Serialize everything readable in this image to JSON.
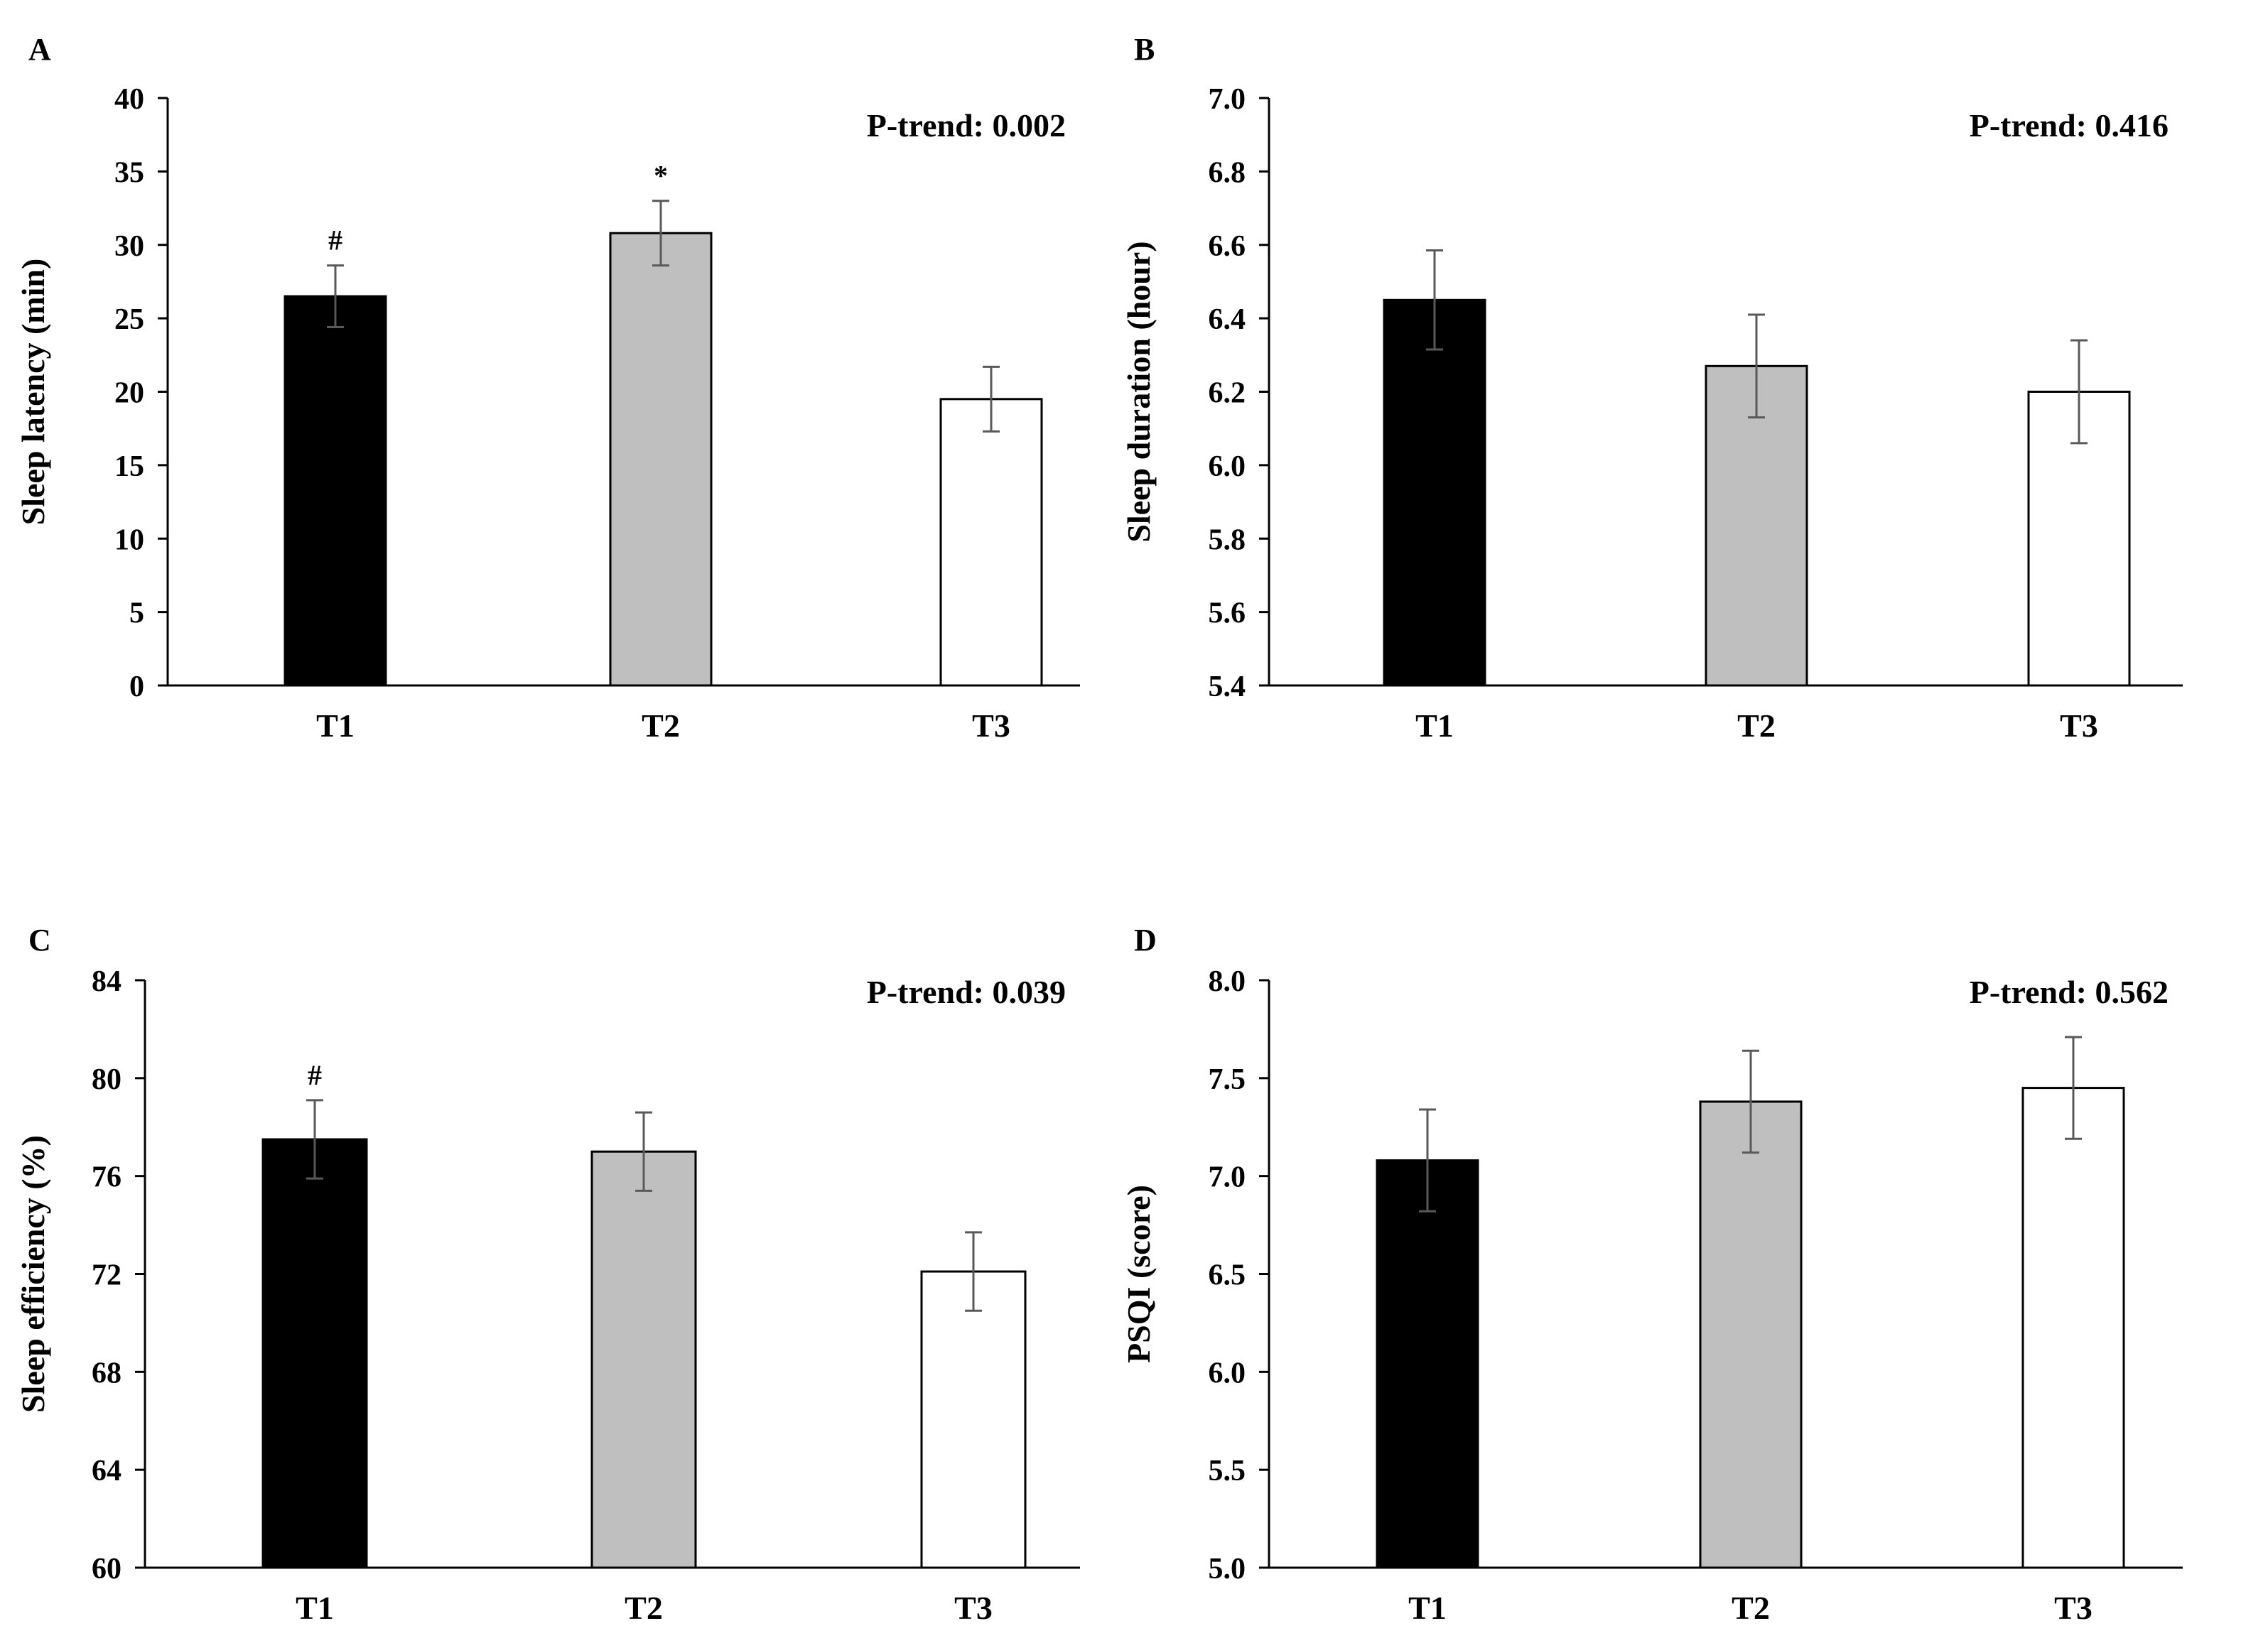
{
  "figure": {
    "colors": {
      "axis": "#000000",
      "error_bar": "#595959",
      "bar_edge": "#000000"
    },
    "panels": [
      {
        "label": "A",
        "annotation": "P-trend: 0.002"
      },
      {
        "label": "B",
        "annotation": "P-trend: 0.416"
      },
      {
        "label": "C",
        "annotation": "P-trend: 0.039"
      },
      {
        "label": "D",
        "annotation": "P-trend: 0.562"
      }
    ]
  },
  "chart_data": [
    {
      "panel": "A",
      "type": "bar",
      "categories": [
        "T1",
        "T2",
        "T3"
      ],
      "values": [
        26.5,
        30.8,
        19.5
      ],
      "errors": [
        2.1,
        2.2,
        2.2
      ],
      "bar_colors": [
        "#000000",
        "#bfbfbf",
        "#ffffff"
      ],
      "markers": [
        "#",
        "*",
        ""
      ],
      "ylabel": "Sleep latency (min)",
      "ylim": [
        0,
        40
      ],
      "yticks": [
        "0",
        "5",
        "10",
        "15",
        "20",
        "25",
        "30",
        "35",
        "40"
      ],
      "annotation": "P-trend: 0.002"
    },
    {
      "panel": "B",
      "type": "bar",
      "categories": [
        "T1",
        "T2",
        "T3"
      ],
      "values": [
        6.45,
        6.27,
        6.2
      ],
      "errors": [
        0.135,
        0.14,
        0.14
      ],
      "bar_colors": [
        "#000000",
        "#bfbfbf",
        "#ffffff"
      ],
      "markers": [
        "",
        "",
        ""
      ],
      "ylabel": "Sleep duration (hour)",
      "ylim": [
        5.4,
        7.0
      ],
      "yticks": [
        "5.4",
        "5.6",
        "5.8",
        "6.0",
        "6.2",
        "6.4",
        "6.6",
        "6.8",
        "7.0"
      ],
      "annotation": "P-trend: 0.416"
    },
    {
      "panel": "C",
      "type": "bar",
      "categories": [
        "T1",
        "T2",
        "T3"
      ],
      "values": [
        77.5,
        77.0,
        72.1
      ],
      "errors": [
        1.6,
        1.6,
        1.6
      ],
      "bar_colors": [
        "#000000",
        "#bfbfbf",
        "#ffffff"
      ],
      "markers": [
        "#",
        "",
        ""
      ],
      "ylabel": "Sleep efficiency (%)",
      "ylim": [
        60,
        84
      ],
      "yticks": [
        "60",
        "64",
        "68",
        "72",
        "76",
        "80",
        "84"
      ],
      "annotation": "P-trend: 0.039"
    },
    {
      "panel": "D",
      "type": "bar",
      "categories": [
        "T1",
        "T2",
        "T3"
      ],
      "values": [
        7.08,
        7.38,
        7.45
      ],
      "errors": [
        0.26,
        0.26,
        0.26
      ],
      "bar_colors": [
        "#000000",
        "#bfbfbf",
        "#ffffff"
      ],
      "markers": [
        "",
        "",
        ""
      ],
      "ylabel": "PSQI (score)",
      "ylim": [
        5.0,
        8.0
      ],
      "yticks": [
        "5.0",
        "5.5",
        "6.0",
        "6.5",
        "7.0",
        "7.5",
        "8.0"
      ],
      "annotation": "P-trend: 0.562"
    }
  ]
}
